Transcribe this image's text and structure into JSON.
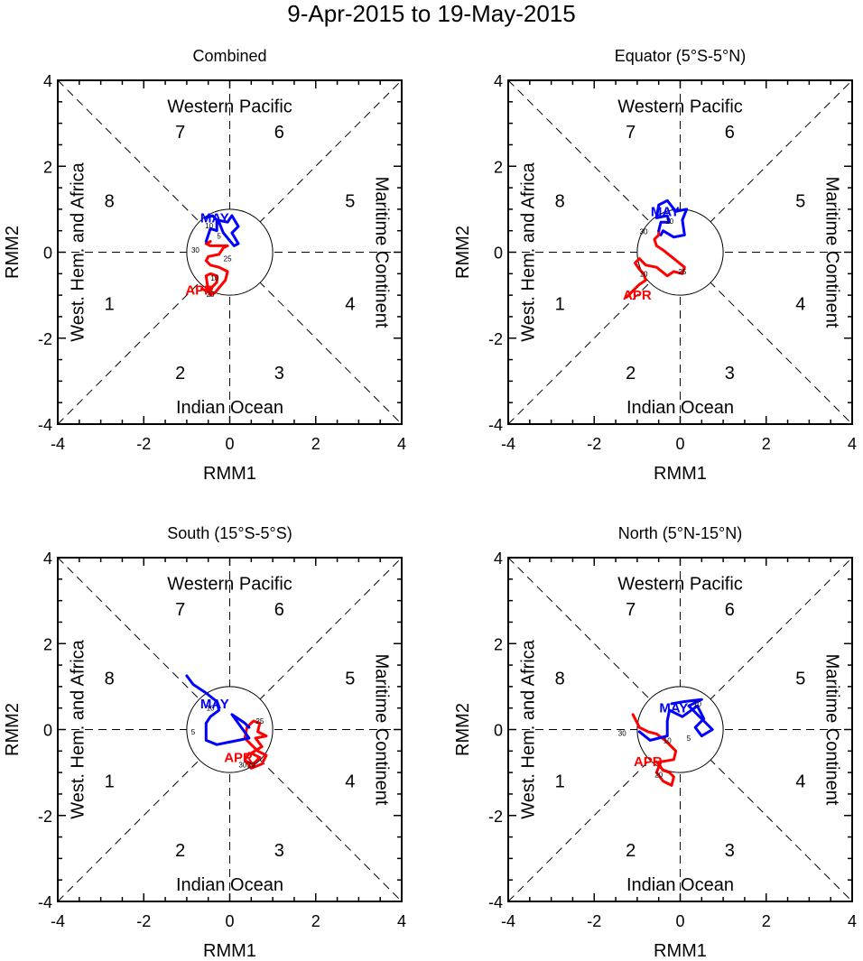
{
  "figure_title": "9-Apr-2015 to 19-May-2015",
  "colors": {
    "april": "#ff0000",
    "may": "#0000ff",
    "axis": "#000000",
    "background": "#ffffff"
  },
  "chart_data": [
    {
      "type": "line",
      "title": "Combined",
      "xlabel": "RMM1",
      "ylabel": "RMM2",
      "xlim": [
        -4,
        4
      ],
      "ylim": [
        -4,
        4
      ],
      "xticks": [
        "-4",
        "-2",
        "0",
        "2",
        "4"
      ],
      "yticks": [
        "-4",
        "-2",
        "0",
        "2",
        "4"
      ],
      "phase_labels": [
        "1",
        "2",
        "3",
        "4",
        "5",
        "6",
        "7",
        "8"
      ],
      "region_labels": {
        "top": "Western Pacific",
        "bottom": "Indian Ocean",
        "left": "West. Hem. and Africa",
        "right": "Maritime Continent"
      },
      "series": [
        {
          "name": "APR",
          "color": "#ff0000",
          "x": [
            -0.65,
            -0.55,
            -0.4,
            -0.3,
            -0.3,
            -0.45,
            -0.55,
            -0.5,
            -0.45,
            -0.35,
            -0.1,
            -0.05,
            -0.25,
            -0.45,
            -0.55,
            -0.5,
            -0.25,
            -0.15,
            -0.05,
            -0.45,
            -0.55,
            -0.45
          ],
          "y": [
            -0.85,
            -0.9,
            -0.8,
            -0.7,
            -0.55,
            -0.5,
            -0.55,
            -0.9,
            -1.0,
            -0.95,
            -0.65,
            -0.45,
            -0.35,
            -0.3,
            -0.2,
            -0.1,
            -0.05,
            0.1,
            0.15,
            0.15,
            0.2,
            0.25
          ],
          "day_labels": [
            {
              "text": "10",
              "x": -0.35,
              "y": -0.6
            },
            {
              "text": "20",
              "x": -0.45,
              "y": -0.98
            },
            {
              "text": "25",
              "x": -0.05,
              "y": -0.15
            },
            {
              "text": "30",
              "x": -0.8,
              "y": 0.05
            }
          ],
          "label": {
            "text": "APR",
            "x": -0.7,
            "y": -0.88
          }
        },
        {
          "name": "MAY",
          "color": "#0000ff",
          "x": [
            -0.55,
            -0.45,
            -0.3,
            -0.3,
            -0.05,
            0.05,
            0.2,
            0.05,
            0.2,
            0.1,
            -0.15,
            -0.25,
            -0.4,
            -0.55
          ],
          "y": [
            0.25,
            0.55,
            0.5,
            0.75,
            0.7,
            0.85,
            0.6,
            0.45,
            0.2,
            0.15,
            0.45,
            0.7,
            0.85,
            0.8
          ],
          "day_labels": [
            {
              "text": "5",
              "x": -0.25,
              "y": 0.38
            },
            {
              "text": "10",
              "x": -0.48,
              "y": 0.62
            }
          ],
          "label": {
            "text": "MAY",
            "x": -0.35,
            "y": 0.8
          }
        }
      ]
    },
    {
      "type": "line",
      "title": "Equator (5°S-5°N)",
      "xlabel": "RMM1",
      "ylabel": "RMM2",
      "xlim": [
        -4,
        4
      ],
      "ylim": [
        -4,
        4
      ],
      "xticks": [
        "-4",
        "-2",
        "0",
        "2",
        "4"
      ],
      "yticks": [
        "-4",
        "-2",
        "0",
        "2",
        "4"
      ],
      "phase_labels": [
        "1",
        "2",
        "3",
        "4",
        "5",
        "6",
        "7",
        "8"
      ],
      "region_labels": {
        "top": "Western Pacific",
        "bottom": "Indian Ocean",
        "left": "West. Hem. and Africa",
        "right": "Maritime Continent"
      },
      "series": [
        {
          "name": "APR",
          "color": "#ff0000",
          "x": [
            -1.25,
            -1.15,
            -0.95,
            -0.8,
            -0.85,
            -0.95,
            -1.05,
            -0.95,
            -0.8,
            -0.55,
            -0.3,
            -0.15,
            0.05,
            0.1,
            -0.15,
            -0.4,
            -0.55,
            -0.6,
            -0.5,
            -0.5
          ],
          "y": [
            -1.05,
            -0.95,
            -0.75,
            -0.65,
            -0.5,
            -0.4,
            -0.25,
            -0.15,
            -0.3,
            -0.35,
            -0.55,
            -0.45,
            -0.5,
            -0.35,
            -0.15,
            0.05,
            0.15,
            0.3,
            0.4,
            0.5
          ],
          "day_labels": [
            {
              "text": "10",
              "x": -0.85,
              "y": -0.5
            },
            {
              "text": "25",
              "x": 0.05,
              "y": -0.45
            }
          ],
          "label": {
            "text": "APR",
            "x": -1.0,
            "y": -1.0
          }
        },
        {
          "name": "MAY",
          "color": "#0000ff",
          "x": [
            -0.5,
            -0.45,
            -0.25,
            -0.3,
            -0.55,
            -0.5,
            -0.3,
            -0.1,
            0.15,
            0.05,
            0.1,
            -0.15,
            -0.4,
            -0.45
          ],
          "y": [
            0.5,
            0.7,
            0.7,
            0.85,
            0.8,
            1.1,
            1.2,
            0.95,
            1.0,
            0.75,
            0.4,
            0.35,
            0.5,
            0.4
          ],
          "day_labels": [
            {
              "text": "30",
              "x": -0.85,
              "y": 0.48
            },
            {
              "text": "10",
              "x": -0.25,
              "y": 0.72
            }
          ],
          "label": {
            "text": "MAY",
            "x": -0.35,
            "y": 0.95
          }
        }
      ]
    },
    {
      "type": "line",
      "title": "South (15°S-5°S)",
      "xlabel": "RMM1",
      "ylabel": "RMM2",
      "xlim": [
        -4,
        4
      ],
      "ylim": [
        -4,
        4
      ],
      "xticks": [
        "-4",
        "-2",
        "0",
        "2",
        "4"
      ],
      "yticks": [
        "-4",
        "-2",
        "0",
        "2",
        "4"
      ],
      "phase_labels": [
        "1",
        "2",
        "3",
        "4",
        "5",
        "6",
        "7",
        "8"
      ],
      "region_labels": {
        "top": "Western Pacific",
        "bottom": "Indian Ocean",
        "left": "West. Hem. and Africa",
        "right": "Maritime Continent"
      },
      "series": [
        {
          "name": "APR",
          "color": "#ff0000",
          "x": [
            0.4,
            0.55,
            0.7,
            0.5,
            0.75,
            0.6,
            0.85,
            0.65,
            0.7,
            0.55,
            0.4,
            0.35,
            0.5,
            0.65,
            0.85,
            0.75,
            0.5,
            0.35,
            0.45
          ],
          "y": [
            -0.75,
            -0.8,
            -0.65,
            -0.55,
            -0.4,
            -0.2,
            -0.15,
            -0.05,
            0.15,
            0.2,
            0.05,
            -0.2,
            -0.35,
            -0.5,
            -0.6,
            -0.8,
            -0.9,
            -0.7,
            -0.55
          ],
          "day_labels": [
            {
              "text": "25",
              "x": 0.7,
              "y": 0.2
            },
            {
              "text": "20",
              "x": 0.5,
              "y": -0.82
            },
            {
              "text": "30",
              "x": 0.3,
              "y": -0.82
            }
          ],
          "label": {
            "text": "APR",
            "x": 0.2,
            "y": -0.65
          }
        },
        {
          "name": "MAY",
          "color": "#0000ff",
          "x": [
            0.45,
            0.35,
            0.05,
            0.45,
            -0.3,
            -0.55,
            -0.55,
            -0.45,
            -0.25,
            -0.3,
            -0.55,
            -0.85,
            -1.0
          ],
          "y": [
            0.05,
            0.15,
            0.35,
            -0.2,
            -0.35,
            -0.25,
            0.15,
            0.3,
            0.45,
            0.65,
            0.85,
            1.05,
            1.25
          ],
          "day_labels": [
            {
              "text": "5",
              "x": -0.85,
              "y": -0.05
            },
            {
              "text": "10",
              "x": -0.45,
              "y": 0.5
            }
          ],
          "label": {
            "text": "MAY",
            "x": -0.35,
            "y": 0.6
          }
        }
      ]
    },
    {
      "type": "line",
      "title": "North (5°N-15°N)",
      "xlabel": "RMM1",
      "ylabel": "RMM2",
      "xlim": [
        -4,
        4
      ],
      "ylim": [
        -4,
        4
      ],
      "xticks": [
        "-4",
        "-2",
        "0",
        "2",
        "4"
      ],
      "yticks": [
        "-4",
        "-2",
        "0",
        "2",
        "4"
      ],
      "phase_labels": [
        "1",
        "2",
        "3",
        "4",
        "5",
        "6",
        "7",
        "8"
      ],
      "region_labels": {
        "top": "Western Pacific",
        "bottom": "Indian Ocean",
        "left": "West. Hem. and Africa",
        "right": "Maritime Continent"
      },
      "series": [
        {
          "name": "APR",
          "color": "#ff0000",
          "x": [
            -0.55,
            -0.4,
            -0.25,
            -0.15,
            -0.2,
            -0.4,
            -0.55,
            -0.45,
            -0.15,
            -0.1,
            -0.25,
            -0.35,
            -0.55,
            -0.75,
            -0.95,
            -1.1
          ],
          "y": [
            -0.75,
            -0.95,
            -1.0,
            -1.1,
            -1.3,
            -1.2,
            -1.0,
            -0.75,
            -0.7,
            -0.5,
            -0.35,
            -0.25,
            -0.1,
            -0.05,
            0.05,
            0.35
          ],
          "day_labels": [
            {
              "text": "20",
              "x": -0.5,
              "y": -1.05
            },
            {
              "text": "30",
              "x": -1.35,
              "y": -0.08
            }
          ],
          "label": {
            "text": "APR",
            "x": -0.75,
            "y": -0.75
          }
        },
        {
          "name": "MAY",
          "color": "#0000ff",
          "x": [
            -0.95,
            -0.7,
            -0.5,
            -0.3,
            -0.3,
            -0.25,
            0.05,
            0.4,
            0.55,
            0.35,
            0.5,
            0.75,
            0.2,
            0.5,
            0.1,
            -0.2
          ],
          "y": [
            -0.05,
            -0.25,
            -0.2,
            -0.15,
            0.2,
            0.45,
            0.3,
            0.55,
            0.25,
            0.05,
            -0.15,
            0.0,
            0.55,
            0.7,
            0.65,
            0.6
          ],
          "day_labels": [
            {
              "text": "10",
              "x": -0.3,
              "y": -0.25
            },
            {
              "text": "5",
              "x": 0.2,
              "y": -0.2
            },
            {
              "text": "10",
              "x": 0.4,
              "y": 0.6
            }
          ],
          "label": {
            "text": "MAY",
            "x": -0.15,
            "y": 0.5
          }
        }
      ]
    }
  ]
}
